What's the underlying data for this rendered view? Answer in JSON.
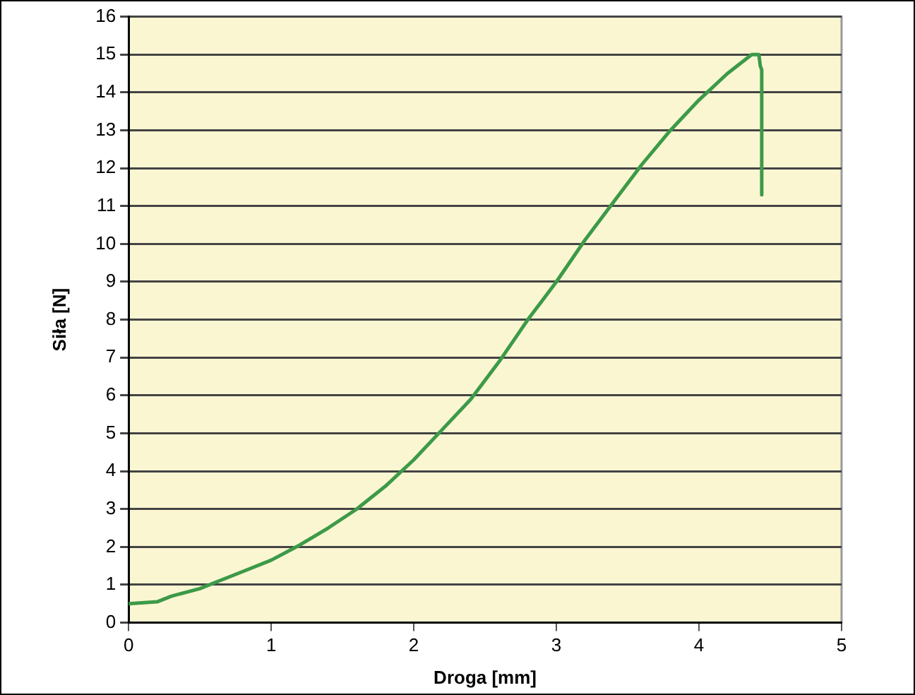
{
  "chart_data": {
    "type": "line",
    "xlabel": "Droga [mm]",
    "ylabel": "Siła [N]",
    "series": [
      {
        "color": "#3c9a48",
        "x": [
          0,
          0.2,
          0.3,
          0.5,
          0.6,
          0.8,
          1.0,
          1.2,
          1.4,
          1.6,
          1.8,
          2.0,
          2.2,
          2.4,
          2.6,
          2.8,
          3.0,
          3.2,
          3.4,
          3.6,
          3.8,
          4.0,
          4.2,
          4.37,
          4.42,
          4.43,
          4.44,
          4.44
        ],
        "values": [
          0.5,
          0.55,
          0.7,
          0.9,
          1.05,
          1.35,
          1.65,
          2.05,
          2.5,
          3.0,
          3.6,
          4.3,
          5.1,
          5.9,
          6.9,
          8.0,
          9.0,
          10.1,
          11.1,
          12.1,
          13.0,
          13.8,
          14.5,
          15.0,
          15.0,
          14.7,
          14.6,
          11.3
        ]
      }
    ],
    "xlim": [
      0,
      5
    ],
    "xticks": [
      0,
      1,
      2,
      3,
      4,
      5
    ],
    "ylim": [
      0,
      16
    ],
    "yticks": [
      0,
      1,
      2,
      3,
      4,
      5,
      6,
      7,
      8,
      9,
      10,
      11,
      12,
      13,
      14,
      15,
      16
    ],
    "grid": "y",
    "legend": false,
    "marker": "none",
    "line_style": "solid"
  }
}
